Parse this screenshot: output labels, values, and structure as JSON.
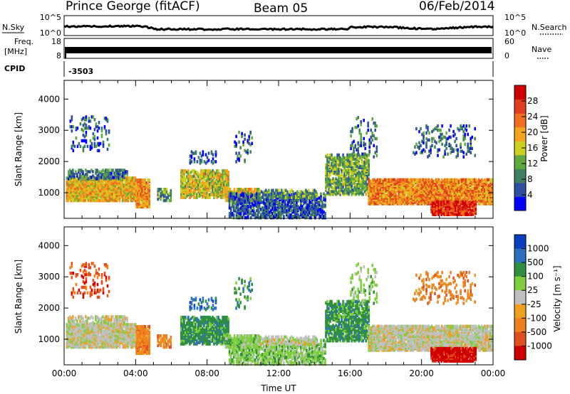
{
  "header": {
    "station": "Prince George (fitACF)",
    "beam": "Beam 05",
    "date": "06/Feb/2014"
  },
  "strip_panels": {
    "nsky_label": "N.Sky",
    "nsearch_label": "N.Search",
    "freq_label_line1": "Freq.",
    "freq_label_line2": "[MHz]",
    "nave_label": "Nave",
    "cpid_label": "CPID",
    "cpid_value": "-3503",
    "noise_ticks": [
      "10^5",
      "10^0"
    ],
    "freq_ticks": [
      "18",
      "8"
    ],
    "nave_ticks": [
      "60",
      "0"
    ]
  },
  "colors": {
    "power": [
      "#0000ff",
      "#2f4f9f",
      "#3f7f5f",
      "#5faa3f",
      "#cfcf1f",
      "#f3a31f",
      "#ef6f1f",
      "#e03f1f",
      "#d00000"
    ],
    "velocity": [
      "#0a3fbf",
      "#2f6fbf",
      "#2f8f3f",
      "#7fcf3f",
      "#c0c0c0",
      "#f0a020",
      "#ef7f1f",
      "#e04f1f",
      "#d00000"
    ]
  },
  "chart_data": [
    {
      "type": "heatmap",
      "name": "power",
      "xlabel": "",
      "ylabel": "Slant Range [km]",
      "xlim": [
        0,
        24
      ],
      "ylim": [
        180,
        4600
      ],
      "x_tick_labels": [
        "00:00",
        "04:00",
        "08:00",
        "12:00",
        "16:00",
        "20:00",
        "00:00"
      ],
      "y_ticks": [
        1000,
        2000,
        3000,
        4000
      ],
      "colorbar_label": "Power [dB]",
      "colorbar_ticks": [
        "4",
        "8",
        "12",
        "16",
        "20",
        "24",
        "28"
      ],
      "colorbar_range": [
        0,
        32
      ]
    },
    {
      "type": "heatmap",
      "name": "velocity",
      "xlabel": "Time UT",
      "ylabel": "Slant Range [km]",
      "xlim": [
        0,
        24
      ],
      "ylim": [
        180,
        4600
      ],
      "x_tick_labels": [
        "00:00",
        "04:00",
        "08:00",
        "12:00",
        "16:00",
        "20:00",
        "00:00"
      ],
      "y_ticks": [
        1000,
        2000,
        3000,
        4000
      ],
      "colorbar_label": "Velocity [m s⁻¹]",
      "colorbar_ticks": [
        "1000",
        "500",
        "100",
        "25",
        "-25",
        "-100",
        "-500",
        "-1000"
      ]
    }
  ]
}
